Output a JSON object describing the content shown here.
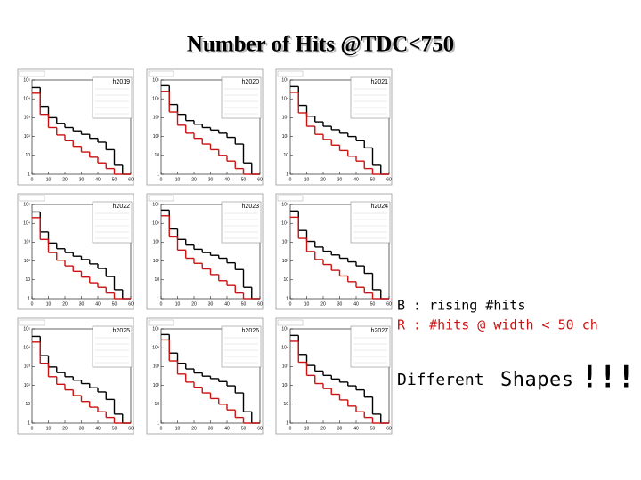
{
  "title": "Number of Hits @TDC<750",
  "notes": [
    "B : rising #hits",
    "R : #hits @ width < 50 ch",
    "Different",
    "Shapes",
    "!!!"
  ],
  "chart_data": [
    {
      "type": "histogram",
      "name": "h2019",
      "bins": [
        0,
        5,
        10,
        15,
        20,
        25,
        30,
        35,
        40,
        45,
        50,
        55,
        60
      ],
      "log": true,
      "ylim": [
        1,
        100000
      ],
      "xlim": [
        0,
        60
      ],
      "xticks": [
        0,
        10,
        20,
        30,
        40,
        50,
        60
      ],
      "yticks": [
        1,
        10,
        {
          "value": 100,
          "label": "10²"
        },
        {
          "value": 1000,
          "label": "10³"
        },
        {
          "value": 10000,
          "label": "10⁴"
        },
        {
          "value": 100000,
          "label": "10⁵"
        }
      ],
      "series": [
        {
          "color": "#000000",
          "values": [
            40000,
            4000,
            1000,
            500,
            300,
            200,
            130,
            80,
            50,
            20,
            3,
            1
          ]
        },
        {
          "color": "#cc1111",
          "values": [
            20000,
            1500,
            300,
            120,
            60,
            30,
            15,
            8,
            4,
            2,
            1,
            1
          ]
        }
      ]
    },
    {
      "type": "histogram",
      "name": "h2020",
      "bins": [
        0,
        5,
        10,
        15,
        20,
        25,
        30,
        35,
        40,
        45,
        50,
        55,
        60
      ],
      "log": true,
      "ylim": [
        1,
        100000
      ],
      "xlim": [
        0,
        60
      ],
      "xticks": [
        0,
        10,
        20,
        30,
        40,
        50,
        60
      ],
      "yticks": [
        1,
        10,
        {
          "value": 100,
          "label": "10²"
        },
        {
          "value": 1000,
          "label": "10³"
        },
        {
          "value": 10000,
          "label": "10⁴"
        },
        {
          "value": 100000,
          "label": "10⁵"
        }
      ],
      "series": [
        {
          "color": "#000000",
          "values": [
            50000,
            5000,
            1500,
            700,
            450,
            300,
            220,
            150,
            90,
            40,
            4,
            1
          ]
        },
        {
          "color": "#cc1111",
          "values": [
            25000,
            2000,
            400,
            150,
            80,
            40,
            20,
            10,
            5,
            2,
            1,
            1
          ]
        }
      ]
    },
    {
      "type": "histogram",
      "name": "h2021",
      "bins": [
        0,
        5,
        10,
        15,
        20,
        25,
        30,
        35,
        40,
        45,
        50,
        55,
        60
      ],
      "log": true,
      "ylim": [
        1,
        100000
      ],
      "xlim": [
        0,
        60
      ],
      "xticks": [
        0,
        10,
        20,
        30,
        40,
        50,
        60
      ],
      "yticks": [
        1,
        10,
        {
          "value": 100,
          "label": "10²"
        },
        {
          "value": 1000,
          "label": "10³"
        },
        {
          "value": 10000,
          "label": "10⁴"
        },
        {
          "value": 100000,
          "label": "10⁵"
        }
      ],
      "series": [
        {
          "color": "#000000",
          "values": [
            45000,
            4500,
            1200,
            600,
            350,
            230,
            150,
            100,
            60,
            25,
            3,
            1
          ]
        },
        {
          "color": "#cc1111",
          "values": [
            22000,
            1800,
            350,
            130,
            70,
            35,
            18,
            9,
            5,
            2,
            1,
            1
          ]
        }
      ]
    },
    {
      "type": "histogram",
      "name": "h2022",
      "bins": [
        0,
        5,
        10,
        15,
        20,
        25,
        30,
        35,
        40,
        45,
        50,
        55,
        60
      ],
      "log": true,
      "ylim": [
        1,
        100000
      ],
      "xlim": [
        0,
        60
      ],
      "xticks": [
        0,
        10,
        20,
        30,
        40,
        50,
        60
      ],
      "yticks": [
        1,
        10,
        {
          "value": 100,
          "label": "10²"
        },
        {
          "value": 1000,
          "label": "10³"
        },
        {
          "value": 10000,
          "label": "10⁴"
        },
        {
          "value": 100000,
          "label": "10⁵"
        }
      ],
      "series": [
        {
          "color": "#000000",
          "values": [
            40000,
            3500,
            900,
            450,
            280,
            180,
            120,
            70,
            40,
            15,
            3,
            1
          ]
        },
        {
          "color": "#cc1111",
          "values": [
            20000,
            1400,
            280,
            110,
            55,
            28,
            14,
            7,
            4,
            2,
            1,
            1
          ]
        }
      ]
    },
    {
      "type": "histogram",
      "name": "h2023",
      "bins": [
        0,
        5,
        10,
        15,
        20,
        25,
        30,
        35,
        40,
        45,
        50,
        55,
        60
      ],
      "log": true,
      "ylim": [
        1,
        100000
      ],
      "xlim": [
        0,
        60
      ],
      "xticks": [
        0,
        10,
        20,
        30,
        40,
        50,
        60
      ],
      "yticks": [
        1,
        10,
        {
          "value": 100,
          "label": "10²"
        },
        {
          "value": 1000,
          "label": "10³"
        },
        {
          "value": 10000,
          "label": "10⁴"
        },
        {
          "value": 100000,
          "label": "10⁵"
        }
      ],
      "series": [
        {
          "color": "#000000",
          "values": [
            50000,
            5000,
            1400,
            700,
            420,
            280,
            200,
            140,
            80,
            35,
            4,
            1
          ]
        },
        {
          "color": "#cc1111",
          "values": [
            25000,
            1900,
            380,
            140,
            75,
            38,
            19,
            9,
            5,
            2,
            1,
            1
          ]
        }
      ]
    },
    {
      "type": "histogram",
      "name": "h2024",
      "bins": [
        0,
        5,
        10,
        15,
        20,
        25,
        30,
        35,
        40,
        45,
        50,
        55,
        60
      ],
      "log": true,
      "ylim": [
        1,
        100000
      ],
      "xlim": [
        0,
        60
      ],
      "xticks": [
        0,
        10,
        20,
        30,
        40,
        50,
        60
      ],
      "yticks": [
        1,
        10,
        {
          "value": 100,
          "label": "10²"
        },
        {
          "value": 1000,
          "label": "10³"
        },
        {
          "value": 10000,
          "label": "10⁴"
        },
        {
          "value": 100000,
          "label": "10⁵"
        }
      ],
      "series": [
        {
          "color": "#000000",
          "values": [
            45000,
            4200,
            1100,
            550,
            330,
            210,
            140,
            90,
            55,
            22,
            3,
            1
          ]
        },
        {
          "color": "#cc1111",
          "values": [
            21000,
            1600,
            320,
            120,
            65,
            32,
            16,
            8,
            4,
            2,
            1,
            1
          ]
        }
      ]
    },
    {
      "type": "histogram",
      "name": "h2025",
      "bins": [
        0,
        5,
        10,
        15,
        20,
        25,
        30,
        35,
        40,
        45,
        50,
        55,
        60
      ],
      "log": true,
      "ylim": [
        1,
        100000
      ],
      "xlim": [
        0,
        60
      ],
      "xticks": [
        0,
        10,
        20,
        30,
        40,
        50,
        60
      ],
      "yticks": [
        1,
        10,
        {
          "value": 100,
          "label": "10²"
        },
        {
          "value": 1000,
          "label": "10³"
        },
        {
          "value": 10000,
          "label": "10⁴"
        },
        {
          "value": 100000,
          "label": "10⁵"
        }
      ],
      "series": [
        {
          "color": "#000000",
          "values": [
            40000,
            3800,
            950,
            480,
            290,
            190,
            125,
            75,
            45,
            18,
            3,
            1
          ]
        },
        {
          "color": "#cc1111",
          "values": [
            20000,
            1500,
            290,
            115,
            58,
            29,
            14,
            7,
            4,
            2,
            1,
            1
          ]
        }
      ]
    },
    {
      "type": "histogram",
      "name": "h2026",
      "bins": [
        0,
        5,
        10,
        15,
        20,
        25,
        30,
        35,
        40,
        45,
        50,
        55,
        60
      ],
      "log": true,
      "ylim": [
        1,
        100000
      ],
      "xlim": [
        0,
        60
      ],
      "xticks": [
        0,
        10,
        20,
        30,
        40,
        50,
        60
      ],
      "yticks": [
        1,
        10,
        {
          "value": 100,
          "label": "10²"
        },
        {
          "value": 1000,
          "label": "10³"
        },
        {
          "value": 10000,
          "label": "10⁴"
        },
        {
          "value": 100000,
          "label": "10⁵"
        }
      ],
      "series": [
        {
          "color": "#000000",
          "values": [
            50000,
            5200,
            1500,
            750,
            460,
            310,
            230,
            160,
            95,
            40,
            4,
            1
          ]
        },
        {
          "color": "#cc1111",
          "values": [
            26000,
            2000,
            400,
            150,
            80,
            40,
            20,
            10,
            5,
            2,
            1,
            1
          ]
        }
      ]
    },
    {
      "type": "histogram",
      "name": "h2027",
      "bins": [
        0,
        5,
        10,
        15,
        20,
        25,
        30,
        35,
        40,
        45,
        50,
        55,
        60
      ],
      "log": true,
      "ylim": [
        1,
        100000
      ],
      "xlim": [
        0,
        60
      ],
      "xticks": [
        0,
        10,
        20,
        30,
        40,
        50,
        60
      ],
      "yticks": [
        1,
        10,
        {
          "value": 100,
          "label": "10²"
        },
        {
          "value": 1000,
          "label": "10³"
        },
        {
          "value": 10000,
          "label": "10⁴"
        },
        {
          "value": 100000,
          "label": "10⁵"
        }
      ],
      "series": [
        {
          "color": "#000000",
          "values": [
            45000,
            4400,
            1150,
            580,
            340,
            220,
            150,
            95,
            58,
            24,
            3,
            1
          ]
        },
        {
          "color": "#cc1111",
          "values": [
            22000,
            1700,
            340,
            125,
            68,
            34,
            17,
            8,
            4,
            2,
            1,
            1
          ]
        }
      ]
    }
  ]
}
